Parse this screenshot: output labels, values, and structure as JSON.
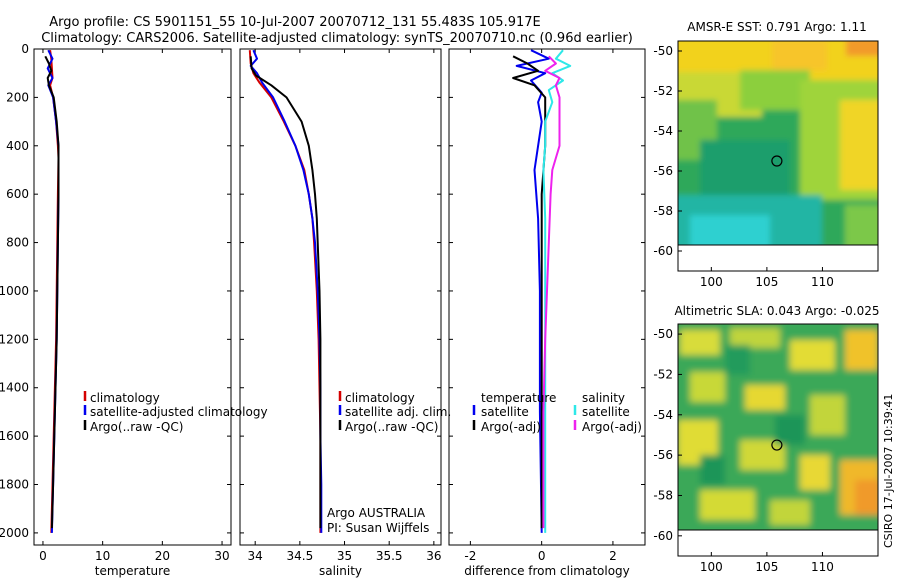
{
  "header": {
    "line1": "Argo profile: CS 5901151_55 10-Jul-2007 20070712_131 55.483S 105.917E",
    "line2": "Climatology: CARS2006. Satellite-adjusted climatology: synTS_20070710.nc (0.96d earlier)"
  },
  "credit": "CSIRO 17-Jul-2007 10:39:41",
  "colors": {
    "red": "#d40000",
    "blue": "#0000ee",
    "black": "#000000",
    "cyan": "#2ee8e8",
    "magenta": "#ee22ee",
    "marker": "#000000"
  },
  "chart_data": [
    {
      "type": "line",
      "id": "temperature",
      "xlabel": "temperature",
      "xlim": [
        -1.5,
        31.5
      ],
      "ylim": [
        2050,
        0
      ],
      "xticks": [
        0,
        10,
        20,
        30
      ],
      "yticks": [
        0,
        200,
        400,
        600,
        800,
        1000,
        1200,
        1400,
        1600,
        1800,
        2000
      ],
      "legend": [
        "climatology",
        "satellite-adjusted climatology",
        "Argo(..raw -QC)"
      ],
      "series": [
        {
          "name": "climatology",
          "color": "red",
          "points": [
            [
              1.2,
              5
            ],
            [
              1.4,
              40
            ],
            [
              1.5,
              80
            ],
            [
              1.6,
              120
            ],
            [
              1.2,
              150
            ],
            [
              1.7,
              200
            ],
            [
              2.2,
              300
            ],
            [
              2.5,
              400
            ],
            [
              2.6,
              450
            ],
            [
              2.5,
              600
            ],
            [
              2.4,
              800
            ],
            [
              2.3,
              1000
            ],
            [
              2.2,
              1200
            ],
            [
              2.0,
              1400
            ],
            [
              1.8,
              1600
            ],
            [
              1.6,
              1800
            ],
            [
              1.4,
              2000
            ]
          ]
        },
        {
          "name": "satellite",
          "color": "blue",
          "points": [
            [
              0.9,
              5
            ],
            [
              1.6,
              40
            ],
            [
              0.8,
              80
            ],
            [
              1.6,
              120
            ],
            [
              0.9,
              150
            ],
            [
              1.7,
              200
            ],
            [
              2.2,
              300
            ],
            [
              2.6,
              400
            ],
            [
              2.6,
              600
            ],
            [
              2.5,
              800
            ],
            [
              2.4,
              1000
            ],
            [
              2.3,
              1200
            ],
            [
              2.1,
              1400
            ],
            [
              1.9,
              1600
            ],
            [
              1.7,
              1800
            ],
            [
              1.5,
              2000
            ]
          ]
        },
        {
          "name": "argo",
          "color": "black",
          "points": [
            [
              0.4,
              30
            ],
            [
              1.0,
              60
            ],
            [
              1.4,
              90
            ],
            [
              0.8,
              120
            ],
            [
              1.0,
              150
            ],
            [
              1.8,
              200
            ],
            [
              2.3,
              300
            ],
            [
              2.6,
              400
            ],
            [
              2.6,
              600
            ],
            [
              2.5,
              800
            ],
            [
              2.4,
              1000
            ],
            [
              2.3,
              1200
            ],
            [
              2.1,
              1400
            ],
            [
              1.9,
              1600
            ],
            [
              1.7,
              1800
            ],
            [
              1.5,
              1980
            ]
          ]
        }
      ]
    },
    {
      "type": "line",
      "id": "salinity",
      "xlabel": "salinity",
      "xlim": [
        33.83,
        36.08
      ],
      "ylim": [
        2050,
        0
      ],
      "xticks": [
        34,
        34.5,
        35,
        35.5,
        36
      ],
      "legend": [
        "climatology",
        "satellite adj. clim.",
        "Argo(..raw -QC)"
      ],
      "annotation": [
        "Argo AUSTRALIA",
        "PI: Susan Wijffels"
      ],
      "series": [
        {
          "name": "climatology",
          "color": "red",
          "points": [
            [
              33.94,
              5
            ],
            [
              33.95,
              60
            ],
            [
              33.98,
              100
            ],
            [
              34.05,
              140
            ],
            [
              34.18,
              200
            ],
            [
              34.32,
              300
            ],
            [
              34.45,
              400
            ],
            [
              34.55,
              500
            ],
            [
              34.6,
              600
            ],
            [
              34.64,
              700
            ],
            [
              34.66,
              800
            ],
            [
              34.69,
              1000
            ],
            [
              34.71,
              1200
            ],
            [
              34.72,
              1400
            ],
            [
              34.73,
              1600
            ],
            [
              34.73,
              1800
            ],
            [
              34.73,
              2000
            ]
          ]
        },
        {
          "name": "satellite",
          "color": "blue",
          "points": [
            [
              33.98,
              5
            ],
            [
              34.02,
              40
            ],
            [
              33.95,
              70
            ],
            [
              34.02,
              100
            ],
            [
              34.08,
              140
            ],
            [
              34.2,
              200
            ],
            [
              34.33,
              300
            ],
            [
              34.45,
              400
            ],
            [
              34.54,
              500
            ],
            [
              34.6,
              600
            ],
            [
              34.64,
              700
            ],
            [
              34.67,
              800
            ],
            [
              34.7,
              1000
            ],
            [
              34.72,
              1200
            ],
            [
              34.73,
              1400
            ],
            [
              34.73,
              1600
            ],
            [
              34.74,
              1800
            ],
            [
              34.74,
              2000
            ]
          ]
        },
        {
          "name": "argo",
          "color": "black",
          "points": [
            [
              33.95,
              30
            ],
            [
              33.96,
              80
            ],
            [
              34.01,
              110
            ],
            [
              34.18,
              150
            ],
            [
              34.35,
              200
            ],
            [
              34.52,
              300
            ],
            [
              34.6,
              400
            ],
            [
              34.64,
              500
            ],
            [
              34.67,
              600
            ],
            [
              34.69,
              700
            ],
            [
              34.7,
              800
            ],
            [
              34.72,
              1000
            ],
            [
              34.73,
              1200
            ],
            [
              34.73,
              1400
            ],
            [
              34.73,
              1600
            ],
            [
              34.73,
              1800
            ],
            [
              34.73,
              1980
            ]
          ]
        }
      ]
    },
    {
      "type": "line",
      "id": "difference",
      "xlabel": "difference from climatology",
      "xlim": [
        -2.6,
        2.9
      ],
      "ylim": [
        2050,
        0
      ],
      "xticks": [
        -2,
        0,
        2
      ],
      "legend_temperature": {
        "title": "temperature",
        "entries": [
          "satellite",
          "Argo(-adj)"
        ]
      },
      "legend_salinity": {
        "title": "salinity",
        "entries": [
          "satellite",
          "Argo(-adj)"
        ]
      },
      "series": [
        {
          "name": "temperature satellite",
          "color": "blue",
          "points": [
            [
              -0.3,
              5
            ],
            [
              0.2,
              40
            ],
            [
              -0.7,
              70
            ],
            [
              0.1,
              100
            ],
            [
              -0.3,
              130
            ],
            [
              0.0,
              180
            ],
            [
              -0.1,
              220
            ],
            [
              0.0,
              300
            ],
            [
              -0.2,
              500
            ],
            [
              -0.1,
              700
            ],
            [
              -0.05,
              1000
            ],
            [
              -0.05,
              1500
            ],
            [
              0.0,
              2000
            ]
          ]
        },
        {
          "name": "temperature argo",
          "color": "black",
          "points": [
            [
              -0.8,
              30
            ],
            [
              -0.4,
              60
            ],
            [
              -0.1,
              90
            ],
            [
              -0.8,
              120
            ],
            [
              -0.2,
              150
            ],
            [
              0.1,
              200
            ],
            [
              0.1,
              300
            ],
            [
              0.1,
              400
            ],
            [
              0.0,
              600
            ],
            [
              0.0,
              800
            ],
            [
              0.0,
              1000
            ],
            [
              0.0,
              1500
            ],
            [
              0.0,
              1980
            ]
          ]
        },
        {
          "name": "salinity satellite",
          "color": "cyan",
          "points": [
            [
              0.6,
              5
            ],
            [
              0.4,
              40
            ],
            [
              0.8,
              70
            ],
            [
              0.3,
              100
            ],
            [
              0.6,
              130
            ],
            [
              0.2,
              170
            ],
            [
              0.3,
              220
            ],
            [
              0.1,
              300
            ],
            [
              0.1,
              400
            ],
            [
              0.05,
              500
            ],
            [
              0.1,
              700
            ],
            [
              0.1,
              1000
            ],
            [
              0.1,
              1500
            ],
            [
              0.1,
              2000
            ]
          ]
        },
        {
          "name": "salinity argo",
          "color": "magenta",
          "points": [
            [
              0.2,
              30
            ],
            [
              0.4,
              60
            ],
            [
              0.1,
              90
            ],
            [
              0.5,
              120
            ],
            [
              0.4,
              150
            ],
            [
              0.5,
              200
            ],
            [
              0.5,
              300
            ],
            [
              0.5,
              400
            ],
            [
              0.4,
              450
            ],
            [
              0.3,
              500
            ],
            [
              0.25,
              600
            ],
            [
              0.2,
              800
            ],
            [
              0.15,
              1000
            ],
            [
              0.1,
              1200
            ],
            [
              0.05,
              1500
            ],
            [
              0.05,
              1980
            ]
          ]
        }
      ]
    },
    {
      "type": "heatmap",
      "id": "sst_map",
      "title": "AMSR-E SST: 0.791 Argo: 1.11",
      "xlim": [
        97,
        115
      ],
      "ylim": [
        -61,
        -49.5
      ],
      "xticks": [
        100,
        105,
        110
      ],
      "yticks": [
        -50,
        -52,
        -54,
        -56,
        -58,
        -60
      ],
      "data_limit": -60,
      "marker": [
        105.9,
        -55.5
      ]
    },
    {
      "type": "heatmap",
      "id": "sla_map",
      "title": "Altimetric SLA: 0.043 Argo: -0.025",
      "xlim": [
        97,
        115
      ],
      "ylim": [
        -61,
        -49.5
      ],
      "xticks": [
        100,
        105,
        110
      ],
      "yticks": [
        -50,
        -52,
        -54,
        -56,
        -58,
        -60
      ],
      "data_limit": -60,
      "marker": [
        105.9,
        -55.5
      ]
    }
  ]
}
